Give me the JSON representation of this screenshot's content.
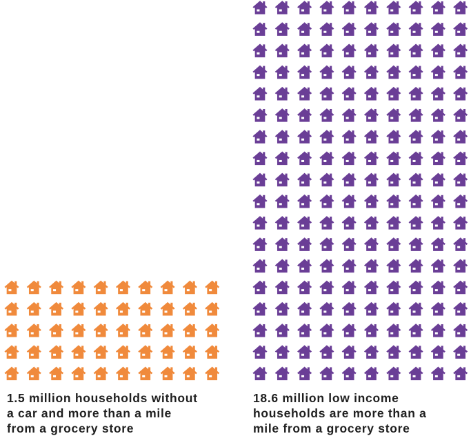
{
  "chart_data": {
    "type": "pictograph",
    "icon": "house-icon",
    "series": [
      {
        "value_millions": 1.5,
        "icon_count": 50,
        "color": "#F08A3C",
        "caption_lines": [
          "1.5 million households without",
          "a car and more than a mile",
          "from a grocery store"
        ]
      },
      {
        "value_millions": 18.6,
        "icon_count": 180,
        "color": "#6A3E96",
        "caption_lines": [
          "18.6 million low income",
          "households are more than a",
          "mile from a grocery store"
        ]
      }
    ]
  }
}
